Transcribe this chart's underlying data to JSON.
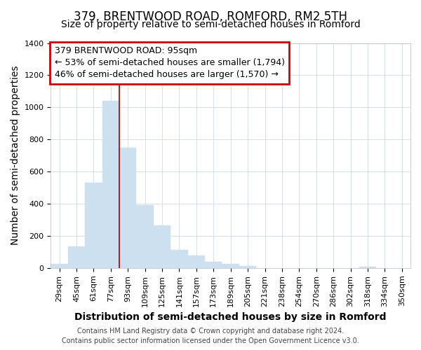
{
  "title": "379, BRENTWOOD ROAD, ROMFORD, RM2 5TH",
  "subtitle": "Size of property relative to semi-detached houses in Romford",
  "xlabel": "Distribution of semi-detached houses by size in Romford",
  "ylabel": "Number of semi-detached properties",
  "categories": [
    "29sqm",
    "45sqm",
    "61sqm",
    "77sqm",
    "93sqm",
    "109sqm",
    "125sqm",
    "141sqm",
    "157sqm",
    "173sqm",
    "189sqm",
    "205sqm",
    "221sqm",
    "238sqm",
    "254sqm",
    "270sqm",
    "286sqm",
    "302sqm",
    "318sqm",
    "334sqm",
    "350sqm"
  ],
  "values": [
    25,
    135,
    530,
    1040,
    750,
    390,
    265,
    115,
    80,
    40,
    25,
    15,
    0,
    0,
    0,
    0,
    0,
    0,
    10,
    0,
    0
  ],
  "bar_color": "#cde0f0",
  "bar_edge_color": "#cde0f0",
  "red_line_index": 4,
  "annotation_title": "379 BRENTWOOD ROAD: 95sqm",
  "annotation_line1": "← 53% of semi-detached houses are smaller (1,794)",
  "annotation_line2": "46% of semi-detached houses are larger (1,570) →",
  "annotation_box_color": "#ffffff",
  "annotation_border_color": "#cc0000",
  "footer_line1": "Contains HM Land Registry data © Crown copyright and database right 2024.",
  "footer_line2": "Contains public sector information licensed under the Open Government Licence v3.0.",
  "ylim": [
    0,
    1400
  ],
  "yticks": [
    0,
    200,
    400,
    600,
    800,
    1000,
    1200,
    1400
  ],
  "grid_color": "#d0e0f0",
  "background_color": "#ffffff",
  "title_fontsize": 12,
  "subtitle_fontsize": 10,
  "axis_label_fontsize": 10,
  "tick_fontsize": 8,
  "footer_fontsize": 7,
  "annotation_fontsize": 9
}
